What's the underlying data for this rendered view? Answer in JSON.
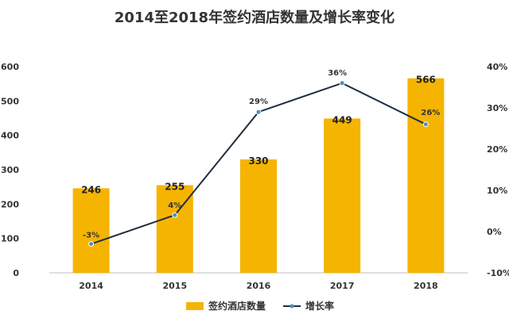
{
  "chart_data": {
    "type": "bar",
    "title": "2014至2018年签约酒店数量及增长率变化",
    "categories": [
      "2014",
      "2015",
      "2016",
      "2017",
      "2018"
    ],
    "series": [
      {
        "name": "签约酒店数量",
        "type": "bar",
        "axis": "left",
        "values": [
          246,
          255,
          330,
          449,
          566
        ],
        "labels": [
          "246",
          "255",
          "330",
          "449",
          "566"
        ],
        "color": "#F5B400"
      },
      {
        "name": "增长率",
        "type": "line",
        "axis": "right",
        "values": [
          -3,
          4,
          29,
          36,
          26
        ],
        "labels": [
          "-3%",
          "4%",
          "29%",
          "36%",
          "26%"
        ],
        "color": "#1F2D3D",
        "marker_color": "#4F8FB8"
      }
    ],
    "y_left": {
      "ylim": [
        0,
        600
      ],
      "ticks": [
        0,
        100,
        200,
        300,
        400,
        500,
        600
      ],
      "tick_labels": [
        "0",
        "100",
        "200",
        "300",
        "400",
        "500",
        "600"
      ]
    },
    "y_right": {
      "ylim": [
        -10,
        40
      ],
      "ticks": [
        -10,
        0,
        10,
        20,
        30,
        40
      ],
      "tick_labels": [
        "-10%",
        "0%",
        "10%",
        "20%",
        "30%",
        "40%"
      ]
    },
    "grid": false,
    "legend_position": "bottom"
  }
}
